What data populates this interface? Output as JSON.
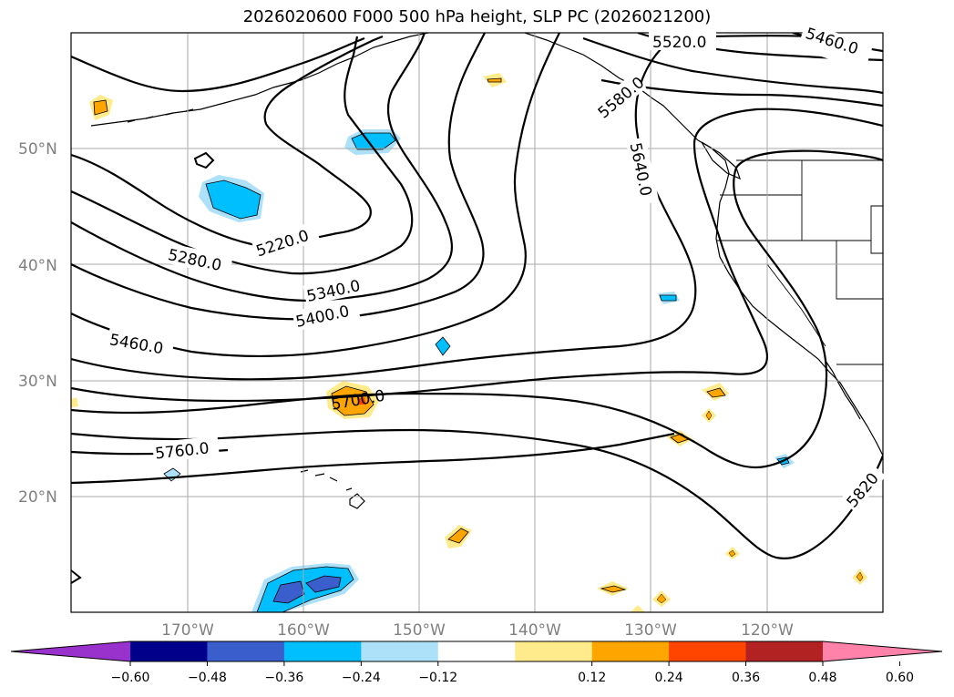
{
  "title": "2026020600 F000 500 hPa height, SLP PC (2026021200)",
  "lat_ticks": [
    "50°N",
    "40°N",
    "30°N",
    "20°N"
  ],
  "lon_ticks": [
    "170°W",
    "160°W",
    "150°W",
    "140°W",
    "130°W",
    "120°W"
  ],
  "contour_labels": [
    "5520.0",
    "5460.0",
    "5580.0",
    "5640.0",
    "5220.0",
    "5280.0",
    "5340.0",
    "5400.0",
    "5460.0",
    "5700.0",
    "5760.0",
    "5820"
  ],
  "colorbar": {
    "ticks": [
      "−0.60",
      "−0.48",
      "−0.36",
      "−0.24",
      "−0.12",
      "0.12",
      "0.24",
      "0.36",
      "0.48",
      "0.60"
    ],
    "colors": [
      "#9932CC",
      "#00008B",
      "#3A5FCD",
      "#00BFFF",
      "#ADE1F9",
      "#FFFFFF",
      "#FFEB8C",
      "#FFA500",
      "#FF4500",
      "#B22222",
      "#FF82AB"
    ]
  },
  "colors": {
    "frame": "#000000",
    "grid": "#aaaaaa",
    "contour": "#000000",
    "tick_label": "#808080"
  }
}
